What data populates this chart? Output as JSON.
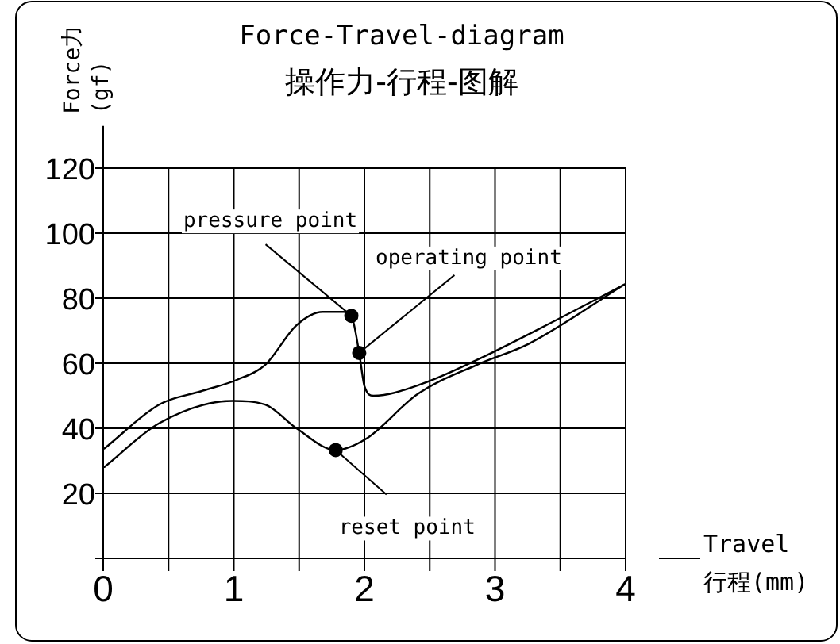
{
  "chart_data": {
    "type": "line",
    "title": "Force-Travel-diagram",
    "subtitle": "操作力-行程-图解",
    "xlabel": "Travel\n行程(mm)",
    "ylabel": "Force力\n(gf)",
    "series": [
      {
        "color": "#000000",
        "x": [
          0.01,
          0.43,
          0.75,
          1.03,
          1.24,
          1.48,
          1.68,
          1.84,
          1.9,
          1.96,
          2.0,
          2.07,
          2.45,
          2.86,
          3.47,
          3.99
        ],
        "values": [
          33.8,
          47.3,
          51.4,
          55,
          59.5,
          71.7,
          75.8,
          75.8,
          74.6,
          63.2,
          53,
          50,
          53.8,
          61,
          73.3,
          84.2
        ]
      },
      {
        "color": "#000000",
        "x": [
          0.01,
          0.43,
          0.99,
          1.24,
          1.48,
          1.78,
          2.01,
          2.41,
          2.86,
          3.26,
          3.99
        ],
        "values": [
          28.1,
          41.6,
          48.4,
          47.3,
          40,
          33.3,
          36.7,
          50.6,
          59.5,
          66,
          84.2
        ]
      },
      {
        "type": "scatter",
        "marker": "circle",
        "color": "#000000",
        "x": [
          1.9,
          1.96,
          1.78
        ],
        "values": [
          74.6,
          63.2,
          33.3
        ]
      }
    ],
    "annotations": [
      {
        "text": "pressure point",
        "x": 1.9,
        "y": 74.6
      },
      {
        "text": "operating point",
        "x": 1.96,
        "y": 63.2
      },
      {
        "text": "reset point",
        "x": 1.78,
        "y": 33.3
      }
    ],
    "xlim": [
      0,
      4
    ],
    "ylim": [
      0,
      133
    ],
    "xticks": [
      0,
      {
        "value": 0.5,
        "label": null
      },
      1,
      {
        "value": 1.5,
        "label": null
      },
      2,
      {
        "value": 2.5,
        "label": null
      },
      3,
      {
        "value": 3.5,
        "label": null
      },
      4
    ],
    "yticks": [
      20,
      40,
      60,
      80,
      100,
      120
    ],
    "grid": true
  }
}
